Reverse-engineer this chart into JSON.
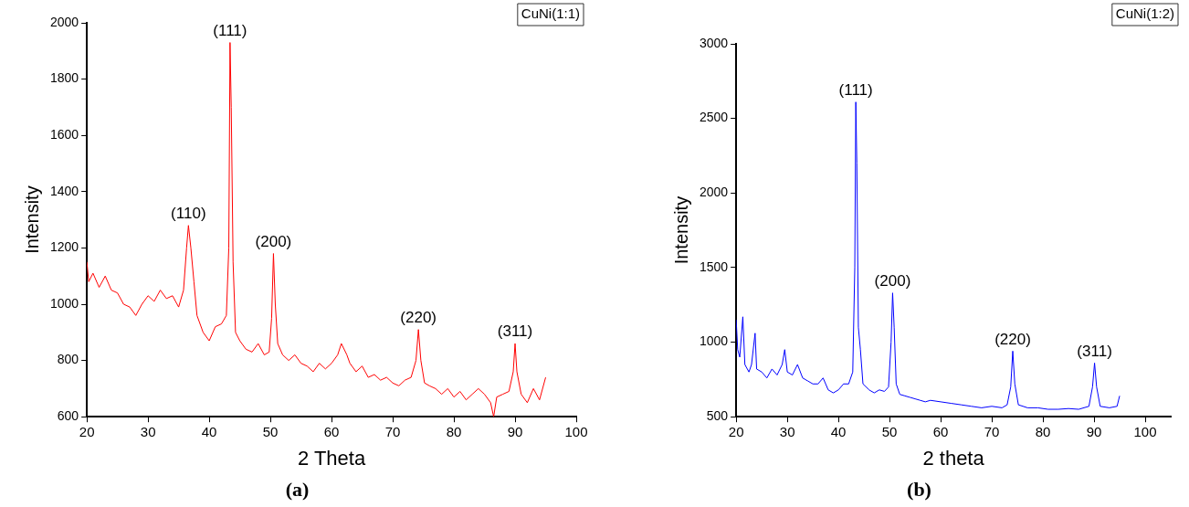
{
  "chart_data": [
    {
      "type": "line",
      "title": "(a)",
      "xlabel": "2 Theta",
      "ylabel": "Intensity",
      "marker": "none",
      "xlim": [
        20,
        100
      ],
      "xticks": [
        20,
        30,
        40,
        50,
        60,
        70,
        80,
        90,
        100
      ],
      "ylim": [
        600,
        2000
      ],
      "yticks": [
        600,
        800,
        1000,
        1200,
        1400,
        1600,
        1800,
        2000
      ],
      "x": [
        20,
        20.3,
        21,
        22,
        23,
        24,
        25,
        26,
        27,
        28,
        29,
        30,
        31,
        32,
        33,
        34,
        35,
        35.8,
        36.3,
        36.6,
        37,
        37.5,
        38,
        39,
        40,
        41,
        42,
        42.8,
        43.2,
        43.4,
        43.6,
        43.9,
        44.3,
        45,
        46,
        47,
        48,
        49,
        49.8,
        50.2,
        50.5,
        50.8,
        51.2,
        52,
        53,
        54,
        55,
        56,
        57,
        58,
        59,
        60,
        61,
        61.6,
        62.5,
        63,
        64,
        65,
        66,
        67,
        68,
        69,
        70,
        71,
        72,
        73,
        73.8,
        74.2,
        74.6,
        75.2,
        76,
        77,
        78,
        79,
        80,
        81,
        82,
        83,
        84,
        85,
        86,
        86.5,
        87,
        88,
        89,
        89.7,
        90,
        90.3,
        91,
        92,
        93,
        94,
        95
      ],
      "series": [
        {
          "color": "#ff0000",
          "values": [
            1150,
            1080,
            1110,
            1060,
            1100,
            1050,
            1040,
            1000,
            990,
            960,
            1000,
            1030,
            1010,
            1050,
            1020,
            1030,
            990,
            1050,
            1200,
            1280,
            1200,
            1080,
            960,
            900,
            870,
            920,
            930,
            960,
            1200,
            1930,
            1700,
            1150,
            900,
            870,
            840,
            830,
            860,
            820,
            830,
            950,
            1180,
            1000,
            860,
            820,
            800,
            820,
            790,
            780,
            760,
            790,
            770,
            790,
            820,
            860,
            820,
            790,
            760,
            780,
            740,
            750,
            730,
            740,
            720,
            710,
            730,
            740,
            800,
            910,
            800,
            720,
            710,
            700,
            680,
            700,
            670,
            690,
            660,
            680,
            700,
            680,
            650,
            600,
            670,
            680,
            690,
            760,
            860,
            760,
            680,
            650,
            700,
            660,
            740
          ]
        }
      ],
      "annotations": [
        "CuNi(1:1)",
        {
          "text": "(111)",
          "x": 43.4,
          "y": 1930
        },
        {
          "text": "(110)",
          "x": 36.6,
          "y": 1280
        },
        {
          "text": "(200)",
          "x": 50.5,
          "y": 1180
        },
        {
          "text": "(220)",
          "x": 74.2,
          "y": 910
        },
        {
          "text": "(311)",
          "x": 90,
          "y": 860
        }
      ]
    },
    {
      "type": "line",
      "title": "(b)",
      "xlabel": "2 theta",
      "ylabel": "Intensity",
      "marker": "none",
      "xlim": [
        20,
        105
      ],
      "xticks": [
        20,
        30,
        40,
        50,
        60,
        70,
        80,
        90,
        100
      ],
      "ylim": [
        500,
        3000
      ],
      "yticks": [
        500,
        1000,
        1500,
        2000,
        2500,
        3000
      ],
      "x": [
        20,
        20.3,
        20.7,
        21.3,
        21.7,
        22.5,
        23,
        23.7,
        24,
        25,
        26,
        27,
        28,
        29,
        29.5,
        30,
        31,
        32,
        33,
        34,
        35,
        36,
        37,
        38,
        39,
        40,
        41,
        42,
        42.8,
        43.2,
        43.4,
        43.6,
        43.9,
        44.3,
        44.8,
        46,
        47,
        48,
        49,
        49.8,
        50.3,
        50.6,
        50.9,
        51.3,
        52,
        53,
        54,
        55,
        56,
        57,
        58,
        60,
        62,
        64,
        66,
        68,
        70,
        72,
        73,
        73.7,
        74.1,
        74.5,
        75.2,
        77,
        79,
        81,
        83,
        85,
        87,
        89,
        89.7,
        90.1,
        90.5,
        91.2,
        93,
        94.5,
        95
      ],
      "series": [
        {
          "color": "#0000ff",
          "values": [
            1150,
            950,
            900,
            1170,
            850,
            800,
            850,
            1060,
            820,
            800,
            760,
            820,
            780,
            850,
            950,
            800,
            780,
            850,
            760,
            740,
            720,
            720,
            760,
            680,
            660,
            680,
            720,
            720,
            800,
            1500,
            2610,
            2200,
            1100,
            950,
            720,
            680,
            660,
            680,
            670,
            700,
            1000,
            1330,
            1100,
            720,
            650,
            640,
            630,
            620,
            610,
            600,
            610,
            600,
            590,
            580,
            570,
            560,
            570,
            560,
            580,
            700,
            940,
            720,
            580,
            560,
            560,
            550,
            550,
            555,
            550,
            570,
            700,
            860,
            700,
            570,
            560,
            570,
            640
          ]
        }
      ],
      "annotations": [
        "CuNi(1:2)",
        {
          "text": "(111)",
          "x": 43.4,
          "y": 2610
        },
        {
          "text": "(200)",
          "x": 50.6,
          "y": 1330
        },
        {
          "text": "(220)",
          "x": 74.1,
          "y": 940
        },
        {
          "text": "(311)",
          "x": 90.1,
          "y": 860
        }
      ]
    }
  ]
}
